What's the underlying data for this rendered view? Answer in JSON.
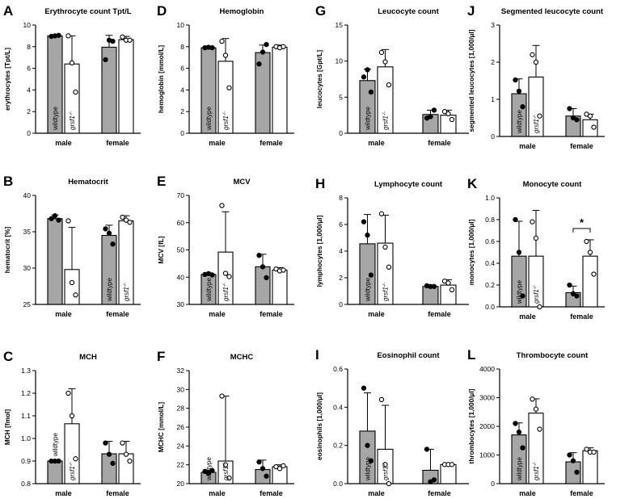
{
  "colors": {
    "wildtype": "#a6a6a6",
    "mutant": "#ffffff",
    "stroke": "#000000"
  },
  "group_labels": {
    "wildtype": "wildtype",
    "mutant_gene": "grsf1",
    "mutant_superscript": "-/-"
  },
  "chart_data": [
    {
      "panel": "A",
      "type": "bar",
      "title": "Erythrocyte count Tpt/L",
      "xlabel": "",
      "ylabel": "erythrocytes [Tpt/L]",
      "ylim": [
        0,
        10
      ],
      "ticks": [
        0,
        2,
        4,
        6,
        8,
        10
      ],
      "categories": [
        "male",
        "female"
      ],
      "series": [
        {
          "name": "wildtype",
          "values": [
            9.0,
            7.95
          ],
          "sd": [
            0.1,
            1.1
          ],
          "points": [
            [
              8.95,
              9.0,
              9.05
            ],
            [
              6.8,
              8.6,
              8.5
            ]
          ]
        },
        {
          "name": "grsf1-/-",
          "values": [
            6.4,
            8.65
          ],
          "sd": [
            2.6,
            0.3
          ],
          "points": [
            [
              9.0,
              6.5,
              3.8
            ],
            [
              8.9,
              8.6,
              8.6
            ]
          ]
        }
      ],
      "label_bars": true
    },
    {
      "panel": "B",
      "type": "bar",
      "title": "Hematocrit",
      "xlabel": "",
      "ylabel": "hematocrit [%]",
      "ylim": [
        25,
        40
      ],
      "ticks": [
        25,
        30,
        35,
        40
      ],
      "categories": [
        "male",
        "female"
      ],
      "series": [
        {
          "name": "wildtype",
          "values": [
            36.8,
            34.5
          ],
          "sd": [
            0.5,
            1.4
          ],
          "points": [
            [
              36.8,
              37.2,
              36.6
            ],
            [
              35.4,
              34.8,
              33.3
            ]
          ]
        },
        {
          "name": "grsf1-/-",
          "values": [
            29.8,
            36.5
          ],
          "sd": [
            5.8,
            0.7
          ],
          "points": [
            [
              36.5,
              28.0,
              26.3
            ],
            [
              37.0,
              36.6,
              36.3
            ]
          ]
        }
      ],
      "label_bars": false,
      "label_female": true
    },
    {
      "panel": "C",
      "type": "bar",
      "title": "MCH",
      "xlabel": "",
      "ylabel": "MCH [fmol]",
      "ylim": [
        0.8,
        1.3
      ],
      "ticks": [
        0.8,
        0.9,
        1.0,
        1.1,
        1.2,
        1.3
      ],
      "categories": [
        "male",
        "female"
      ],
      "series": [
        {
          "name": "wildtype",
          "values": [
            0.9,
            0.932
          ],
          "sd": [
            0.005,
            0.055
          ],
          "points": [
            [
              0.9,
              0.9,
              0.9
            ],
            [
              0.98,
              0.93,
              0.89
            ]
          ]
        },
        {
          "name": "grsf1-/-",
          "values": [
            1.065,
            0.932
          ],
          "sd": [
            0.155,
            0.055
          ],
          "points": [
            [
              1.2,
              1.1,
              0.91
            ],
            [
              0.98,
              0.93,
              0.9
            ]
          ]
        }
      ],
      "label_bars": true,
      "wildtype_label_above": true
    },
    {
      "panel": "D",
      "type": "bar",
      "title": "Hemoglobin",
      "xlabel": "",
      "ylabel": "hemoglobin [mmol/L]",
      "ylim": [
        0,
        10
      ],
      "ticks": [
        0,
        2,
        4,
        6,
        8,
        10
      ],
      "categories": [
        "male",
        "female"
      ],
      "series": [
        {
          "name": "wildtype",
          "values": [
            7.9,
            7.45
          ],
          "sd": [
            0.1,
            0.7
          ],
          "points": [
            [
              7.9,
              7.95,
              7.9
            ],
            [
              6.4,
              7.5,
              8.2
            ]
          ]
        },
        {
          "name": "grsf1-/-",
          "values": [
            6.65,
            7.95
          ],
          "sd": [
            2.1,
            0.2
          ],
          "points": [
            [
              8.5,
              7.2,
              4.2
            ],
            [
              8.0,
              7.9,
              8.0
            ]
          ]
        }
      ],
      "label_bars": true
    },
    {
      "panel": "E",
      "type": "bar",
      "title": "MCV",
      "xlabel": "",
      "ylabel": "MCV [fL]",
      "ylim": [
        30,
        70
      ],
      "ticks": [
        30,
        40,
        50,
        60,
        70
      ],
      "categories": [
        "male",
        "female"
      ],
      "series": [
        {
          "name": "wildtype",
          "values": [
            41.0,
            43.8
          ],
          "sd": [
            0.6,
            4.6
          ],
          "points": [
            [
              41.0,
              41.3,
              40.8
            ],
            [
              48.0,
              43.8,
              39.8
            ]
          ]
        },
        {
          "name": "grsf1-/-",
          "values": [
            49.2,
            42.6
          ],
          "sd": [
            14.8,
            0.9
          ],
          "points": [
            [
              66.3,
              41.4,
              40.2
            ],
            [
              43.0,
              42.3,
              42.6
            ]
          ]
        }
      ],
      "label_bars": true
    },
    {
      "panel": "F",
      "type": "bar",
      "title": "MCHC",
      "xlabel": "",
      "ylabel": "MCHC [mmol/L]",
      "ylim": [
        20,
        32
      ],
      "ticks": [
        20,
        22,
        24,
        26,
        28,
        30,
        32
      ],
      "categories": [
        "male",
        "female"
      ],
      "series": [
        {
          "name": "wildtype",
          "values": [
            21.2,
            21.5
          ],
          "sd": [
            0.2,
            1.0
          ],
          "points": [
            [
              21.3,
              21.1,
              21.4
            ],
            [
              22.3,
              21.6,
              20.8
            ]
          ]
        },
        {
          "name": "grsf1-/-",
          "values": [
            22.4,
            21.8
          ],
          "sd": [
            6.9,
            0.2
          ],
          "points": [
            [
              29.3,
              22.0,
              20.6
            ],
            [
              21.8,
              21.6,
              21.9
            ]
          ]
        }
      ],
      "label_bars": true
    },
    {
      "panel": "G",
      "type": "bar",
      "title": "Leucocyte count",
      "xlabel": "",
      "ylabel": "leucocytes [Gpt/L]",
      "ylim": [
        0,
        15
      ],
      "ticks": [
        0,
        5,
        10,
        15
      ],
      "categories": [
        "male",
        "female"
      ],
      "series": [
        {
          "name": "wildtype",
          "values": [
            7.3,
            2.6
          ],
          "sd": [
            1.6,
            0.6
          ],
          "points": [
            [
              7.8,
              8.8,
              5.7
            ],
            [
              2.1,
              2.3,
              3.2
            ]
          ]
        },
        {
          "name": "grsf1-/-",
          "values": [
            9.2,
            2.5
          ],
          "sd": [
            2.4,
            0.7
          ],
          "points": [
            [
              11.2,
              9.9,
              6.7
            ],
            [
              3.0,
              2.7,
              1.9
            ]
          ]
        }
      ],
      "label_bars": true
    },
    {
      "panel": "H",
      "type": "bar",
      "title": "Lymphocyte count",
      "xlabel": "",
      "ylabel": "lymphocytes [1,000/µl]",
      "ylim": [
        0,
        8
      ],
      "ticks": [
        0,
        2,
        4,
        6,
        8
      ],
      "categories": [
        "male",
        "female"
      ],
      "series": [
        {
          "name": "wildtype",
          "values": [
            4.55,
            1.35
          ],
          "sd": [
            2.2,
            0.05
          ],
          "points": [
            [
              6.2,
              5.2,
              2.2
            ],
            [
              1.4,
              1.35,
              1.35
            ]
          ]
        },
        {
          "name": "grsf1-/-",
          "values": [
            4.6,
            1.45
          ],
          "sd": [
            2.1,
            0.4
          ],
          "points": [
            [
              6.8,
              4.3,
              2.8
            ],
            [
              1.75,
              1.6,
              1.1
            ]
          ]
        }
      ],
      "label_bars": true
    },
    {
      "panel": "I",
      "type": "bar",
      "title": "Eosinophil count",
      "xlabel": "",
      "ylabel": "eosinophils [1,000/µl]",
      "ylim": [
        0,
        0.6
      ],
      "ticks": [
        0.0,
        0.2,
        0.4,
        0.6
      ],
      "categories": [
        "male",
        "female"
      ],
      "series": [
        {
          "name": "wildtype",
          "values": [
            0.275,
            0.07
          ],
          "sd": [
            0.2,
            0.11
          ],
          "points": [
            [
              0.5,
              0.2,
              0.12
            ],
            [
              0.18,
              0.01,
              0.02
            ]
          ]
        },
        {
          "name": "grsf1-/-",
          "values": [
            0.18,
            0.1
          ],
          "sd": [
            0.23,
            0.0
          ],
          "points": [
            [
              0.44,
              0.1,
              0.0
            ],
            [
              0.1,
              0.1,
              0.1
            ]
          ]
        }
      ],
      "label_bars": true,
      "mutant_label_left": true
    },
    {
      "panel": "J",
      "type": "bar",
      "title": "Segmented leucocyte count",
      "xlabel": "",
      "ylabel": "segmented leucocytes [1,000/µl]",
      "ylim": [
        0,
        3
      ],
      "ticks": [
        0,
        1,
        2,
        3
      ],
      "categories": [
        "male",
        "female"
      ],
      "series": [
        {
          "name": "wildtype",
          "values": [
            1.15,
            0.55
          ],
          "sd": [
            0.4,
            0.2
          ],
          "points": [
            [
              1.52,
              1.22,
              0.8
            ],
            [
              0.75,
              0.5,
              0.45
            ]
          ]
        },
        {
          "name": "grsf1-/-",
          "values": [
            1.6,
            0.45
          ],
          "sd": [
            0.85,
            0.15
          ],
          "points": [
            [
              2.2,
              2.0,
              0.55
            ],
            [
              0.6,
              0.55,
              0.25
            ]
          ]
        }
      ],
      "label_bars": true
    },
    {
      "panel": "K",
      "type": "bar",
      "title": "Monocyte count",
      "xlabel": "",
      "ylabel": "monocytes [1,000/µl]",
      "ylim": [
        0,
        1
      ],
      "ticks": [
        0.0,
        0.2,
        0.4,
        0.6,
        0.8,
        1.0
      ],
      "categories": [
        "male",
        "female"
      ],
      "series": [
        {
          "name": "wildtype",
          "values": [
            0.465,
            0.13
          ],
          "sd": [
            0.32,
            0.06
          ],
          "points": [
            [
              0.8,
              0.5,
              0.1
            ],
            [
              0.2,
              0.12,
              0.1
            ]
          ]
        },
        {
          "name": "grsf1-/-",
          "values": [
            0.465,
            0.465
          ],
          "sd": [
            0.42,
            0.15
          ],
          "points": [
            [
              0.78,
              0.63,
              0.0
            ],
            [
              0.6,
              0.5,
              0.3
            ]
          ]
        }
      ],
      "label_bars": true,
      "annotation": {
        "text": "*",
        "between": "female"
      }
    },
    {
      "panel": "L",
      "type": "bar",
      "title": "Thrombocyte count",
      "xlabel": "",
      "ylabel": "thrombocytes [1,000/µl]",
      "ylim": [
        0,
        4000
      ],
      "ticks": [
        0,
        1000,
        2000,
        3000,
        4000
      ],
      "categories": [
        "male",
        "female"
      ],
      "series": [
        {
          "name": "wildtype",
          "values": [
            1700,
            760
          ],
          "sd": [
            420,
            320
          ],
          "points": [
            [
              2100,
              1800,
              1250
            ],
            [
              1000,
              800,
              400
            ]
          ]
        },
        {
          "name": "grsf1-/-",
          "values": [
            2460,
            1150
          ],
          "sd": [
            500,
            100
          ],
          "points": [
            [
              2950,
              2600,
              1900
            ],
            [
              1200,
              1100,
              1100
            ]
          ]
        }
      ],
      "label_bars": true
    }
  ]
}
